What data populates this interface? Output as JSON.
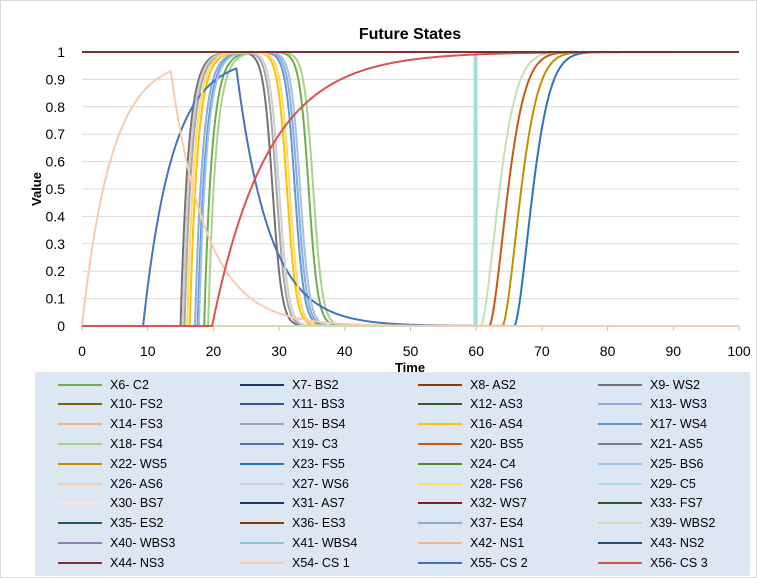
{
  "chart_data": {
    "type": "line",
    "title": "Future States",
    "xlabel": "Time",
    "ylabel": "Value",
    "xlim": [
      0,
      100
    ],
    "ylim": [
      0,
      1
    ],
    "xticks": [
      "0",
      "10",
      "20",
      "30",
      "40",
      "50",
      "60",
      "70",
      "80",
      "90",
      "100"
    ],
    "yticks": [
      "0",
      "0.1",
      "0.2",
      "0.3",
      "0.4",
      "0.5",
      "0.6",
      "0.7",
      "0.8",
      "0.9",
      "1"
    ],
    "grid": "horizontal",
    "legend_position": "bottom",
    "series": [
      {
        "name": "X6- C2",
        "color": "#70ad47",
        "shape": "pulse",
        "rise": 18.6,
        "fall": 34.5
      },
      {
        "name": "X7- BS2",
        "color": "#1f3864",
        "shape": "flat",
        "level": 0
      },
      {
        "name": "X8- AS2",
        "color": "#843c0c",
        "shape": "flat",
        "level": 1
      },
      {
        "name": "X9- WS2",
        "color": "#767171",
        "shape": "pulse",
        "rise": 15.0,
        "fall": 29.0
      },
      {
        "name": "X10- FS2",
        "color": "#7f6000",
        "shape": "flat",
        "level": 0
      },
      {
        "name": "X11- BS3",
        "color": "#2e5597",
        "shape": "flat",
        "level": 0
      },
      {
        "name": "X12- AS3",
        "color": "#385723",
        "shape": "flat",
        "level": 0
      },
      {
        "name": "X13- WS3",
        "color": "#8faadc",
        "shape": "pulse",
        "rise": 17.2,
        "fall": 32.8
      },
      {
        "name": "X14- FS3",
        "color": "#f4b183",
        "shape": "flat",
        "level": 0
      },
      {
        "name": "X15- BS4",
        "color": "#a6a6a6",
        "shape": "pulse",
        "rise": 15.6,
        "fall": 29.6
      },
      {
        "name": "X16- AS4",
        "color": "#ffc000",
        "shape": "pulse",
        "rise": 16.4,
        "fall": 31.2
      },
      {
        "name": "X17- WS4",
        "color": "#5b9bd5",
        "shape": "pulse",
        "rise": 17.6,
        "fall": 32.4
      },
      {
        "name": "X18- FS4",
        "color": "#a9d18e",
        "shape": "pulse",
        "rise": 19.2,
        "fall": 35.2
      },
      {
        "name": "X19- C3",
        "color": "#4472c4",
        "shape": "c3",
        "start": 9.3,
        "peak_x": 23.5,
        "peak": 0.94
      },
      {
        "name": "X20- BS5",
        "color": "#c55a11",
        "shape": "step",
        "rise": 62.0
      },
      {
        "name": "X21- AS5",
        "color": "#7b7b7b",
        "shape": "flat",
        "level": 0
      },
      {
        "name": "X22- WS5",
        "color": "#bf9000",
        "shape": "step",
        "rise": 64.0
      },
      {
        "name": "X23- FS5",
        "color": "#2e75b6",
        "shape": "step",
        "rise": 65.8
      },
      {
        "name": "X24- C4",
        "color": "#548235",
        "shape": "flat",
        "level": 0
      },
      {
        "name": "X25- BS6",
        "color": "#9dc3e6",
        "shape": "pulse",
        "rise": 17.8,
        "fall": 33.2
      },
      {
        "name": "X26- AS6",
        "color": "#f8cbad",
        "shape": "flat",
        "level": 0
      },
      {
        "name": "X27- WS6",
        "color": "#d0cece",
        "shape": "pulse",
        "rise": 15.3,
        "fall": 30.0
      },
      {
        "name": "X28- FS6",
        "color": "#ffd966",
        "shape": "pulse",
        "rise": 16.0,
        "fall": 31.6
      },
      {
        "name": "X29- C5",
        "color": "#9fdbe0",
        "shape": "spike",
        "at": 59.9
      },
      {
        "name": "X30- BS7",
        "color": "#fbe5d6",
        "shape": "flat",
        "level": 0
      },
      {
        "name": "X31- AS7",
        "color": "#1f3864",
        "shape": "flat",
        "level": 0
      },
      {
        "name": "X32- WS7",
        "color": "#7b1f1f",
        "shape": "flat",
        "level": 1
      },
      {
        "name": "X33- FS7",
        "color": "#375623",
        "shape": "flat",
        "level": 0
      },
      {
        "name": "X35- ES2",
        "color": "#1e5a5a",
        "shape": "flat",
        "level": 0
      },
      {
        "name": "X36- ES3",
        "color": "#843c0c",
        "shape": "flat",
        "level": 0
      },
      {
        "name": "X37- ES4",
        "color": "#8ea9c8",
        "shape": "flat",
        "level": 0
      },
      {
        "name": "X39- WBS2",
        "color": "#c5e0b4",
        "shape": "step",
        "rise": 60.7
      },
      {
        "name": "X40- WBS3",
        "color": "#8f7fbf",
        "shape": "flat",
        "level": 0
      },
      {
        "name": "X41- WBS4",
        "color": "#86c6d4",
        "shape": "flat",
        "level": 0
      },
      {
        "name": "X42- NS1",
        "color": "#f4b183",
        "shape": "flat",
        "level": 0
      },
      {
        "name": "X43- NS2",
        "color": "#1f4e79",
        "shape": "flat",
        "level": 0
      },
      {
        "name": "X44- NS3",
        "color": "#7f2f2f",
        "shape": "flat",
        "level": 1
      },
      {
        "name": "X54- CS 1",
        "color": "#f8cbad",
        "shape": "cs1",
        "peak_x": 13.5,
        "peak": 0.93
      },
      {
        "name": "X55- CS 2",
        "color": "#3a72b8",
        "shape": "flat",
        "level": 0
      },
      {
        "name": "X56- CS 3",
        "color": "#d9534f",
        "shape": "rise_slow",
        "start": 19.8
      }
    ]
  }
}
